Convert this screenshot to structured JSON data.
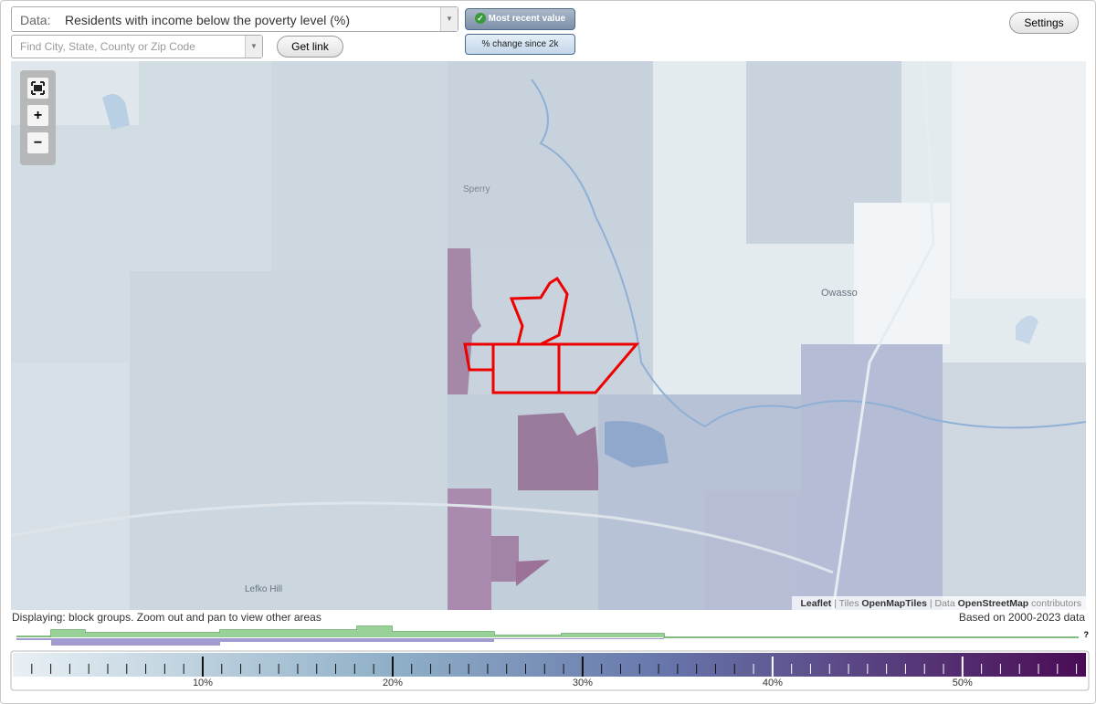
{
  "toolbar": {
    "data_label": "Data:",
    "data_value": "Residents with income below the poverty level (%)",
    "search_placeholder": "Find City, State, County or Zip Code",
    "get_link": "Get link",
    "mode_buttons": [
      "Most recent value",
      "% change since 2k"
    ],
    "settings": "Settings"
  },
  "map": {
    "zoom_in": "+",
    "zoom_out": "−",
    "places": [
      "Sperry",
      "Owasso",
      "Lefko Hill"
    ],
    "attribution": [
      "Leaflet",
      "| Tiles",
      "OpenMapTiles",
      "| Data",
      "OpenStreetMap",
      "contributors"
    ]
  },
  "status": {
    "displaying": "Displaying: block groups. Zoom out and pan to view other areas",
    "based_on": "Based on 2000-2023 data"
  },
  "legend": {
    "xlim": [
      0,
      56.5
    ],
    "ticks": [
      {
        "value": 10,
        "label": "10%"
      },
      {
        "value": 20,
        "label": "20%"
      },
      {
        "value": 30,
        "label": "30%"
      },
      {
        "value": 40,
        "label": "40%"
      },
      {
        "value": 50,
        "label": "50%"
      }
    ],
    "minor_ticks": [
      1,
      2,
      3,
      4,
      5,
      6,
      7,
      8,
      9,
      11,
      12,
      13,
      14,
      15,
      16,
      17,
      18,
      19,
      21,
      22,
      23,
      24,
      25,
      26,
      27,
      28,
      29,
      31,
      32,
      33,
      34,
      35,
      36,
      37,
      38,
      39,
      41,
      42,
      43,
      44,
      45,
      46,
      47,
      48,
      49,
      51,
      52,
      53,
      54,
      55,
      56
    ],
    "unknown_marker": "?"
  }
}
